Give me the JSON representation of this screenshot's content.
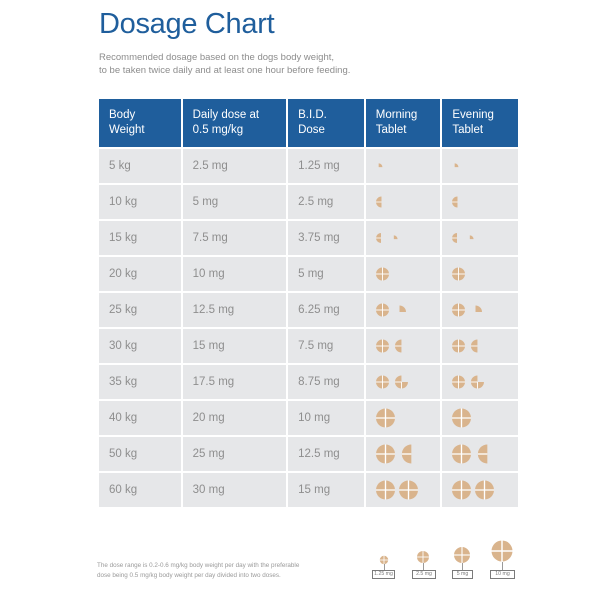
{
  "header": {
    "title": "Dosage Chart",
    "subtitle_line1": "Recommended dosage based on the dogs body weight,",
    "subtitle_line2": "to be taken twice daily and at least one hour before feeding."
  },
  "table": {
    "columns": [
      [
        "Body",
        "Weight"
      ],
      [
        "Daily dose at",
        "0.5 mg/kg"
      ],
      [
        "B.I.D.",
        "Dose"
      ],
      [
        "Morning",
        "Tablet"
      ],
      [
        "Evening",
        "Tablet"
      ]
    ],
    "rows": [
      {
        "weight": "5 kg",
        "daily": "2.5 mg",
        "bid": "1.25 mg",
        "tablets": [
          0.25
        ]
      },
      {
        "weight": "10 kg",
        "daily": "5 mg",
        "bid": "2.5 mg",
        "tablets": [
          0.5
        ]
      },
      {
        "weight": "15 kg",
        "daily": "7.5 mg",
        "bid": "3.75 mg",
        "tablets": [
          0.5,
          0.25
        ]
      },
      {
        "weight": "20 kg",
        "daily": "10 mg",
        "bid": "5 mg",
        "tablets": [
          1
        ]
      },
      {
        "weight": "25 kg",
        "daily": "12.5 mg",
        "bid": "6.25 mg",
        "tablets": [
          1,
          0.25
        ]
      },
      {
        "weight": "30 kg",
        "daily": "15 mg",
        "bid": "7.5 mg",
        "tablets": [
          1,
          0.5
        ]
      },
      {
        "weight": "35 kg",
        "daily": "17.5 mg",
        "bid": "8.75 mg",
        "tablets": [
          1,
          0.75
        ]
      },
      {
        "weight": "40 kg",
        "daily": "20 mg",
        "bid": "10 mg",
        "tablets": [
          2
        ]
      },
      {
        "weight": "50 kg",
        "daily": "25 mg",
        "bid": "12.5 mg",
        "tablets": [
          2,
          0.5
        ]
      },
      {
        "weight": "60 kg",
        "daily": "30 mg",
        "bid": "15 mg",
        "tablets": [
          2,
          1
        ]
      }
    ]
  },
  "footnote": {
    "line1": "The dose range is 0.2-0.6 mg/kg body weight per day with the preferable",
    "line2": "dose being 0.5 mg/kg body weight per day divided into two doses."
  },
  "legend": [
    {
      "label": "1.25 mg"
    },
    {
      "label": "2.5 mg"
    },
    {
      "label": "5 mg"
    },
    {
      "label": "10 mg"
    }
  ],
  "colors": {
    "header_blue": "#1f5e9c",
    "cell_grey": "#e6e7e9",
    "tablet_fill": "#d9b48d",
    "tablet_line": "#ffffff"
  }
}
